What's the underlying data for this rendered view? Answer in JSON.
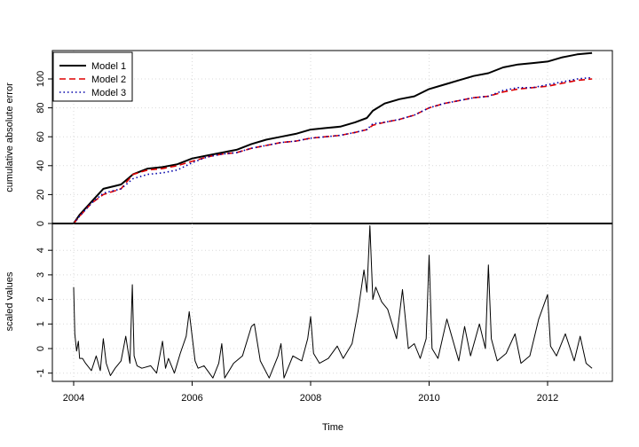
{
  "chart_data": [
    {
      "type": "line",
      "panel": "top",
      "ylabel": "cumulative absolute error",
      "ylim": [
        0,
        120
      ],
      "yticks": [
        "0",
        "20",
        "40",
        "60",
        "80",
        "100"
      ],
      "grid": true,
      "legend_position": "top-left",
      "x": [
        2004.0,
        2004.1,
        2004.3,
        2004.5,
        2004.8,
        2005.0,
        2005.25,
        2005.5,
        2005.75,
        2006.0,
        2006.25,
        2006.5,
        2006.75,
        2007.0,
        2007.25,
        2007.5,
        2007.75,
        2008.0,
        2008.25,
        2008.5,
        2008.75,
        2008.95,
        2009.05,
        2009.25,
        2009.5,
        2009.75,
        2010.0,
        2010.25,
        2010.5,
        2010.75,
        2011.0,
        2011.25,
        2011.5,
        2011.75,
        2012.0,
        2012.25,
        2012.5,
        2012.75
      ],
      "series": [
        {
          "name": "Model 1",
          "color": "#000000",
          "dash": "solid",
          "values": [
            0,
            6,
            15,
            24,
            27,
            34,
            38,
            39,
            41,
            45,
            47,
            49,
            51,
            55,
            58,
            60,
            62,
            65,
            66,
            67,
            70,
            73,
            78,
            83,
            86,
            88,
            93,
            96,
            99,
            102,
            104,
            108,
            110,
            111,
            112,
            115,
            117,
            118
          ]
        },
        {
          "name": "Model 2",
          "color": "#df0000",
          "dash": "dashed",
          "values": [
            0,
            5,
            14,
            20,
            24,
            34,
            37,
            38,
            40,
            43,
            46,
            48,
            49,
            52,
            54,
            56,
            57,
            59,
            60,
            61,
            63,
            65,
            68,
            70,
            72,
            75,
            80,
            83,
            85,
            87,
            88,
            91,
            93,
            94,
            95,
            97,
            99,
            100
          ]
        },
        {
          "name": "Model 3",
          "color": "#0000aa",
          "dash": "dotted",
          "values": [
            0,
            5,
            14,
            21,
            24,
            31,
            34,
            35,
            37,
            42,
            46,
            48,
            49,
            52,
            54,
            56,
            57,
            59,
            60,
            61,
            63,
            65,
            69,
            70,
            72,
            75,
            80,
            83,
            85,
            87,
            88,
            92,
            94,
            94,
            96,
            98,
            100,
            101
          ]
        }
      ]
    },
    {
      "type": "line",
      "panel": "bottom",
      "ylabel": "scaled values",
      "xlabel": "Time",
      "ylim": [
        -1.3,
        5
      ],
      "yticks": [
        "-1",
        "0",
        "1",
        "2",
        "3",
        "4"
      ],
      "xticks": [
        "2004",
        "2006",
        "2008",
        "2010",
        "2012"
      ],
      "grid": true,
      "series": [
        {
          "color": "#000000",
          "x": [
            2004.0,
            2004.02,
            2004.05,
            2004.08,
            2004.1,
            2004.15,
            2004.2,
            2004.3,
            2004.38,
            2004.45,
            2004.5,
            2004.55,
            2004.62,
            2004.7,
            2004.8,
            2004.88,
            2004.95,
            2004.99,
            2005.02,
            2005.07,
            2005.15,
            2005.3,
            2005.4,
            2005.5,
            2005.55,
            2005.6,
            2005.7,
            2005.8,
            2005.9,
            2005.95,
            2006.05,
            2006.1,
            2006.2,
            2006.35,
            2006.45,
            2006.5,
            2006.55,
            2006.7,
            2006.85,
            2007.0,
            2007.05,
            2007.15,
            2007.3,
            2007.45,
            2007.5,
            2007.55,
            2007.7,
            2007.85,
            2007.95,
            2008.0,
            2008.05,
            2008.15,
            2008.3,
            2008.45,
            2008.55,
            2008.7,
            2008.8,
            2008.9,
            2008.95,
            2009.0,
            2009.05,
            2009.1,
            2009.2,
            2009.3,
            2009.45,
            2009.55,
            2009.65,
            2009.75,
            2009.85,
            2009.95,
            2010.0,
            2010.05,
            2010.15,
            2010.3,
            2010.5,
            2010.6,
            2010.7,
            2010.85,
            2010.95,
            2011.0,
            2011.05,
            2011.15,
            2011.3,
            2011.45,
            2011.55,
            2011.7,
            2011.85,
            2012.0,
            2012.05,
            2012.15,
            2012.3,
            2012.45,
            2012.55,
            2012.65,
            2012.75
          ],
          "values": [
            2.5,
            0.6,
            -0.1,
            0.3,
            -0.4,
            -0.4,
            -0.6,
            -0.9,
            -0.3,
            -0.9,
            0.4,
            -0.6,
            -1.1,
            -0.8,
            -0.5,
            0.5,
            -0.6,
            2.6,
            -0.3,
            -0.7,
            -0.8,
            -0.7,
            -1.0,
            0.3,
            -0.8,
            -0.4,
            -1.0,
            -0.2,
            0.5,
            1.5,
            -0.5,
            -0.8,
            -0.7,
            -1.2,
            -0.6,
            0.2,
            -1.2,
            -0.6,
            -0.3,
            0.9,
            1.0,
            -0.5,
            -1.2,
            -0.3,
            0.2,
            -1.2,
            -0.3,
            -0.5,
            0.4,
            1.3,
            -0.2,
            -0.6,
            -0.4,
            0.1,
            -0.4,
            0.2,
            1.5,
            3.2,
            2.3,
            5.0,
            2.0,
            2.5,
            1.9,
            1.6,
            0.4,
            2.4,
            0.0,
            0.2,
            -0.4,
            0.4,
            3.8,
            0.0,
            -0.4,
            1.2,
            -0.5,
            0.9,
            -0.3,
            1.0,
            0.0,
            3.4,
            0.4,
            -0.5,
            -0.2,
            0.6,
            -0.6,
            -0.3,
            1.2,
            2.2,
            0.1,
            -0.3,
            0.6,
            -0.5,
            0.5,
            -0.6,
            -0.8
          ]
        }
      ]
    }
  ]
}
